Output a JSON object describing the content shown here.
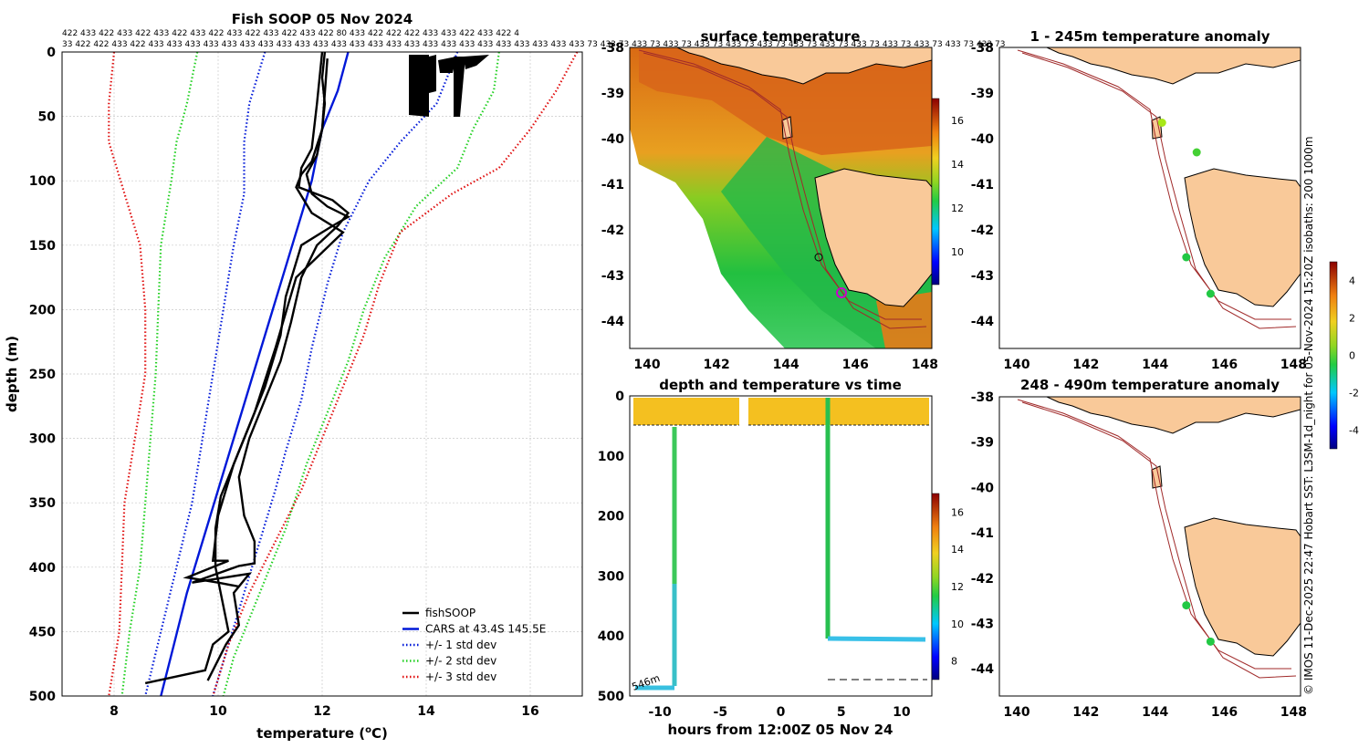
{
  "chart_data": [
    {
      "type": "line",
      "title": "Fish SOOP 05 Nov 2024",
      "xlabel": "temperature (",
      "xlabel_sup": "o",
      "xlabel_end": "C)",
      "ylabel": "depth (m)",
      "xlim": [
        7,
        17
      ],
      "ylim": [
        500,
        0
      ],
      "xticks": [
        8,
        10,
        12,
        14,
        16
      ],
      "yticks": [
        0,
        50,
        100,
        150,
        200,
        250,
        300,
        350,
        400,
        450,
        500
      ],
      "top_labels_row1": "422 433 422 433 422 433 422 433 422 433 422 433 422 433 422 80 433 422 422 422 433 433 422 433 422 4",
      "top_labels_row2": "33 422 422 433 422 433 433 433 433 433 433 433 433 433 433 433 433 433 433 433 433 433 433 433 433 433 433 433 433 73 433 73 433 73 433 73 433 73 433 73 433 73 433 73 433 73 433 73 433 73 433 73 433 73 433 73",
      "legend": [
        {
          "label": "fishSOOP",
          "color": "#000000",
          "style": "solid"
        },
        {
          "label": "CARS at 43.4S 145.5E",
          "color": "#0018d8",
          "style": "solid"
        },
        {
          "label": "+/- 1 std dev",
          "color": "#0018d8",
          "style": "dotted"
        },
        {
          "label": "+/- 2 std dev",
          "color": "#22d022",
          "style": "dotted"
        },
        {
          "label": "+/- 3 std dev",
          "color": "#e01010",
          "style": "dotted"
        }
      ],
      "series": [
        {
          "name": "CARS mean",
          "color": "#0018d8",
          "style": "solid",
          "points": [
            [
              12.5,
              0
            ],
            [
              12.3,
              30
            ],
            [
              12.0,
              60
            ],
            [
              11.8,
              100
            ],
            [
              11.5,
              140
            ],
            [
              11.2,
              180
            ],
            [
              10.9,
              220
            ],
            [
              10.6,
              260
            ],
            [
              10.3,
              300
            ],
            [
              10.0,
              340
            ],
            [
              9.7,
              380
            ],
            [
              9.4,
              420
            ],
            [
              9.15,
              460
            ],
            [
              8.9,
              500
            ]
          ]
        },
        {
          "name": "+1 std",
          "color": "#0018d8",
          "style": "dotted",
          "points": [
            [
              14.6,
              0
            ],
            [
              14.2,
              40
            ],
            [
              13.5,
              70
            ],
            [
              12.9,
              100
            ],
            [
              12.4,
              140
            ],
            [
              12.1,
              180
            ],
            [
              11.8,
              230
            ],
            [
              11.6,
              270
            ],
            [
              11.3,
              310
            ],
            [
              11.1,
              340
            ],
            [
              10.8,
              380
            ],
            [
              10.5,
              420
            ],
            [
              10.2,
              460
            ],
            [
              9.9,
              500
            ]
          ]
        },
        {
          "name": "-1 std",
          "color": "#0018d8",
          "style": "dotted",
          "points": [
            [
              10.9,
              0
            ],
            [
              10.6,
              40
            ],
            [
              10.5,
              70
            ],
            [
              10.5,
              110
            ],
            [
              10.3,
              150
            ],
            [
              10.1,
              200
            ],
            [
              9.9,
              250
            ],
            [
              9.7,
              300
            ],
            [
              9.5,
              350
            ],
            [
              9.2,
              400
            ],
            [
              8.9,
              450
            ],
            [
              8.6,
              500
            ]
          ]
        },
        {
          "name": "+2 std",
          "color": "#22d022",
          "style": "dotted",
          "points": [
            [
              15.4,
              0
            ],
            [
              15.3,
              30
            ],
            [
              14.9,
              60
            ],
            [
              14.6,
              90
            ],
            [
              13.8,
              120
            ],
            [
              13.2,
              160
            ],
            [
              12.8,
              200
            ],
            [
              12.5,
              240
            ],
            [
              12.1,
              280
            ],
            [
              11.7,
              320
            ],
            [
              11.3,
              370
            ],
            [
              10.8,
              420
            ],
            [
              10.3,
              470
            ],
            [
              10.1,
              500
            ]
          ]
        },
        {
          "name": "-2 std",
          "color": "#22d022",
          "style": "dotted",
          "points": [
            [
              9.6,
              0
            ],
            [
              9.4,
              40
            ],
            [
              9.2,
              70
            ],
            [
              9.1,
              100
            ],
            [
              8.9,
              150
            ],
            [
              8.85,
              200
            ],
            [
              8.8,
              250
            ],
            [
              8.7,
              300
            ],
            [
              8.6,
              350
            ],
            [
              8.5,
              400
            ],
            [
              8.3,
              450
            ],
            [
              8.15,
              500
            ]
          ]
        },
        {
          "name": "+3 std",
          "color": "#e01010",
          "style": "dotted",
          "points": [
            [
              16.9,
              0
            ],
            [
              16.5,
              30
            ],
            [
              16.0,
              60
            ],
            [
              15.4,
              90
            ],
            [
              14.5,
              110
            ],
            [
              13.5,
              140
            ],
            [
              13.1,
              180
            ],
            [
              12.8,
              220
            ],
            [
              12.4,
              260
            ],
            [
              12.0,
              300
            ],
            [
              11.6,
              340
            ],
            [
              11.1,
              380
            ],
            [
              10.6,
              420
            ],
            [
              10.2,
              460
            ],
            [
              9.9,
              500
            ]
          ]
        },
        {
          "name": "-3 std",
          "color": "#e01010",
          "style": "dotted",
          "points": [
            [
              8.0,
              0
            ],
            [
              7.9,
              40
            ],
            [
              7.9,
              70
            ],
            [
              8.2,
              110
            ],
            [
              8.5,
              150
            ],
            [
              8.6,
              200
            ],
            [
              8.6,
              250
            ],
            [
              8.4,
              300
            ],
            [
              8.2,
              350
            ],
            [
              8.15,
              400
            ],
            [
              8.1,
              450
            ],
            [
              7.9,
              500
            ]
          ]
        },
        {
          "name": "fishSOOP",
          "color": "#000000",
          "style": "solid",
          "points": [
            [
              12.05,
              0
            ],
            [
              12.0,
              20
            ],
            [
              12.05,
              40
            ],
            [
              12.0,
              60
            ],
            [
              11.9,
              80
            ],
            [
              11.7,
              95
            ],
            [
              11.8,
              110
            ],
            [
              12.1,
              120
            ],
            [
              12.5,
              128
            ],
            [
              12.2,
              135
            ],
            [
              11.6,
              150
            ],
            [
              11.3,
              190
            ],
            [
              11.2,
              220
            ],
            [
              10.9,
              260
            ],
            [
              10.6,
              290
            ],
            [
              10.3,
              320
            ],
            [
              10.05,
              345
            ],
            [
              9.95,
              370
            ],
            [
              9.95,
              400
            ],
            [
              10.1,
              430
            ],
            [
              10.2,
              450
            ],
            [
              9.9,
              460
            ],
            [
              9.75,
              480
            ],
            [
              8.6,
              490
            ]
          ]
        },
        {
          "name": "fishSOOP 2",
          "color": "#000000",
          "style": "solid",
          "points": [
            [
              12.0,
              0
            ],
            [
              11.9,
              40
            ],
            [
              11.8,
              75
            ],
            [
              11.6,
              90
            ],
            [
              11.55,
              105
            ],
            [
              12.2,
              115
            ],
            [
              12.5,
              125
            ],
            [
              12.3,
              135
            ],
            [
              11.9,
              150
            ],
            [
              11.6,
              175
            ],
            [
              11.4,
              210
            ],
            [
              11.2,
              240
            ],
            [
              10.9,
              270
            ],
            [
              10.6,
              300
            ],
            [
              10.4,
              330
            ],
            [
              10.5,
              360
            ],
            [
              10.7,
              380
            ],
            [
              10.7,
              397
            ],
            [
              10.4,
              399
            ],
            [
              9.5,
              412
            ],
            [
              10.6,
              405
            ],
            [
              10.3,
              420
            ],
            [
              10.4,
              445
            ],
            [
              10.15,
              460
            ],
            [
              9.9,
              480
            ],
            [
              9.8,
              488
            ]
          ]
        },
        {
          "name": "fishSOOP 3",
          "color": "#000000",
          "style": "solid",
          "points": [
            [
              12.1,
              5
            ],
            [
              12.0,
              60
            ],
            [
              11.8,
              85
            ],
            [
              11.6,
              95
            ],
            [
              11.5,
              105
            ],
            [
              11.8,
              125
            ],
            [
              12.4,
              140
            ],
            [
              11.5,
              175
            ],
            [
              11.1,
              230
            ],
            [
              10.7,
              280
            ],
            [
              10.3,
              320
            ],
            [
              10.0,
              360
            ],
            [
              9.9,
              395
            ],
            [
              10.2,
              395
            ],
            [
              9.4,
              408
            ],
            [
              10.0,
              412
            ],
            [
              10.4,
              415
            ]
          ]
        }
      ],
      "legend_position": "bottom-right"
    },
    {
      "type": "heatmap",
      "title": "surface temperature",
      "xlim": [
        139.5,
        148.2
      ],
      "ylim": [
        -44.6,
        -38
      ],
      "xticks": [
        140,
        142,
        144,
        146,
        148
      ],
      "yticks": [
        -38,
        -39,
        -40,
        -41,
        -42,
        -43,
        -44
      ],
      "colorbar_ticks": [
        10,
        12,
        14,
        16
      ],
      "colorbar_range": [
        8.5,
        17
      ]
    },
    {
      "type": "scatter",
      "title": "depth and temperature vs time",
      "xlabel": "hours from 12:00Z 05 Nov 24",
      "xlim": [
        -12.5,
        12.5
      ],
      "ylim": [
        500,
        0
      ],
      "xticks": [
        -10,
        -5,
        0,
        5,
        10
      ],
      "yticks": [
        0,
        100,
        200,
        300,
        400,
        500
      ],
      "colorbar_ticks": [
        8,
        10,
        12,
        14,
        16
      ],
      "colorbar_range": [
        7,
        17
      ],
      "annotation": "546m"
    },
    {
      "type": "scatter",
      "title": "1 - 245m temperature anomaly",
      "xlim": [
        139.5,
        148.2
      ],
      "ylim": [
        -44.6,
        -38
      ],
      "xticks": [
        140,
        142,
        144,
        146,
        148
      ],
      "yticks": [
        -38,
        -39,
        -40,
        -41,
        -42,
        -43,
        -44
      ],
      "colorbar_ticks": [
        4,
        2,
        0,
        -2,
        -4
      ],
      "points": [
        [
          144.2,
          -39.65,
          1.6
        ],
        [
          145.2,
          -40.3,
          0.4
        ],
        [
          144.9,
          -42.6,
          0.3
        ],
        [
          145.6,
          -43.4,
          0.2
        ]
      ]
    },
    {
      "type": "scatter",
      "title": "248 - 490m temperature anomaly",
      "xlim": [
        139.5,
        148.2
      ],
      "ylim": [
        -44.6,
        -38
      ],
      "xticks": [
        140,
        142,
        144,
        146,
        148
      ],
      "yticks": [
        -38,
        -39,
        -40,
        -41,
        -42,
        -43,
        -44
      ],
      "points": [
        [
          144.9,
          -42.6,
          0.2
        ],
        [
          145.6,
          -43.4,
          0.3
        ]
      ]
    }
  ],
  "credit": "© IMOS 11-Dec-2025 22:47 Hobart SST: L3SM-1d_night for 05-Nov-2024 15:20Z isobaths: 200  1000m",
  "colors": {
    "land": "#f9c999",
    "isobath": "#a02a2a",
    "cars": "#0018d8"
  }
}
